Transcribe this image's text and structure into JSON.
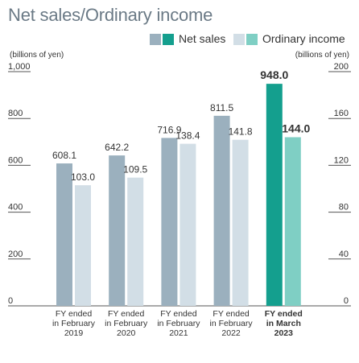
{
  "page": {
    "title": "Net sales/Ordinary income",
    "left_unit": "(billions of yen)",
    "right_unit": "(billions of yen)"
  },
  "legend": {
    "net_sales": "Net sales",
    "ordinary_income": "Ordinary income"
  },
  "colors": {
    "net_sales": "#9bb0be",
    "ordinary_income": "#d2dee6",
    "net_sales_latest": "#149f8e",
    "ordinary_income_latest": "#7fcfc4",
    "title": "#6b7a86"
  },
  "chart_data": {
    "type": "bar",
    "title": "Net sales/Ordinary income",
    "categories": [
      [
        "FY ended",
        "in February",
        "2019"
      ],
      [
        "FY ended",
        "in February",
        "2020"
      ],
      [
        "FY ended",
        "in February",
        "2021"
      ],
      [
        "FY ended",
        "in February",
        "2022"
      ],
      [
        "FY ended",
        "in March",
        "2023"
      ]
    ],
    "series": [
      {
        "name": "Net sales",
        "axis": "left",
        "values": [
          608.1,
          642.2,
          716.9,
          811.5,
          948.0
        ],
        "labels": [
          "608.1",
          "642.2",
          "716.9",
          "811.5",
          "948.0"
        ]
      },
      {
        "name": "Ordinary income",
        "axis": "right",
        "values": [
          103.0,
          109.5,
          138.4,
          141.8,
          144.0
        ],
        "labels": [
          "103.0",
          "109.5",
          "138.4",
          "141.8",
          "144.0"
        ]
      }
    ],
    "left_axis": {
      "ylim": [
        0,
        1000
      ],
      "ticks": [
        "0",
        "200",
        "400",
        "600",
        "800",
        "1,000"
      ]
    },
    "right_axis": {
      "ylim": [
        0,
        200
      ],
      "ticks": [
        "0",
        "40",
        "80",
        "120",
        "160",
        "200"
      ]
    },
    "highlight_last": true,
    "grid": false,
    "legend_position": "top-right"
  }
}
